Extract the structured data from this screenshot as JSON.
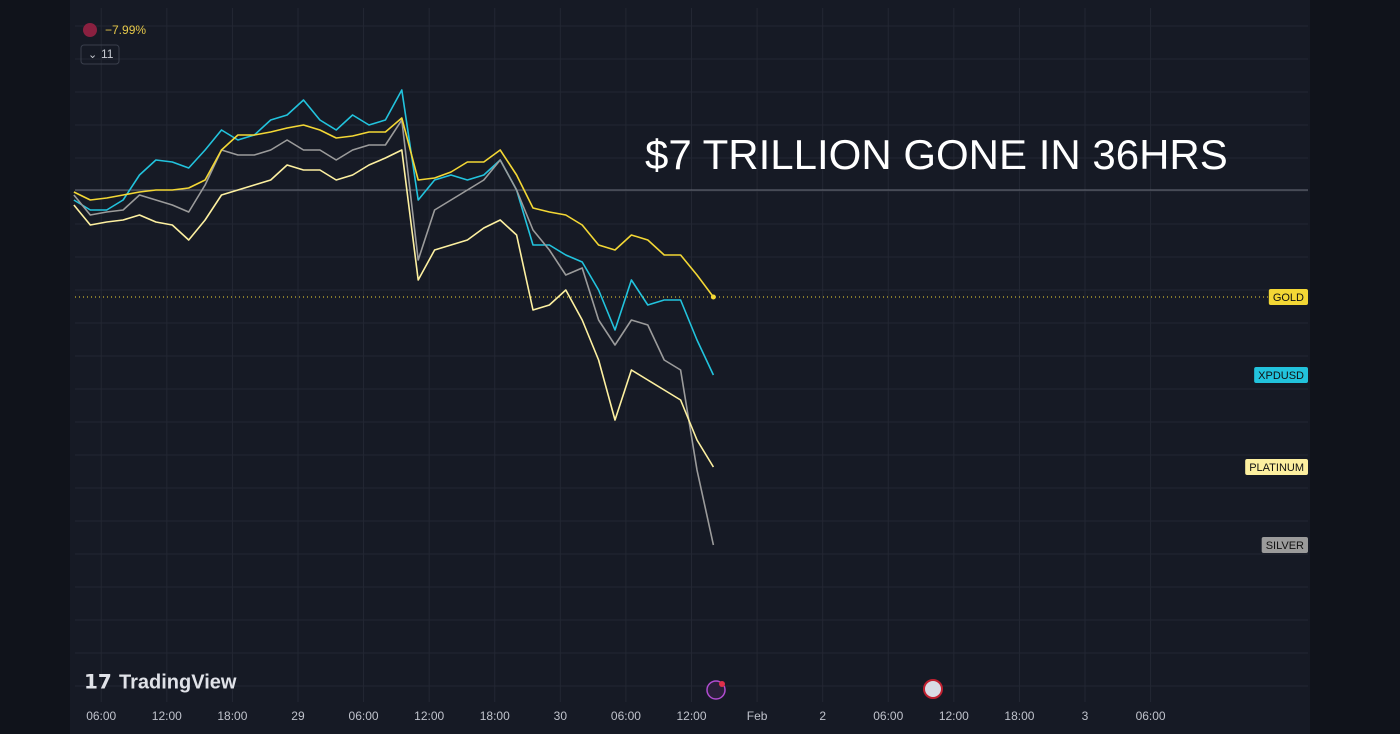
{
  "ui": {
    "change": "−7.99%",
    "collapsed_count": "11",
    "brand": "TradingView"
  },
  "chart_data": {
    "type": "line",
    "annotation": "$7 TRILLION GONE IN 36HRS",
    "x": [
      3.5,
      5,
      6.5,
      8,
      9.5,
      11,
      12.5,
      14,
      15.5,
      17,
      18.5,
      20,
      21.5,
      23,
      24.5,
      26,
      27.5,
      29,
      30.5,
      32,
      33.5,
      35,
      36.5,
      38,
      39.5,
      41,
      42.5,
      44,
      45.5,
      47,
      48.5,
      50,
      51.5,
      53,
      54.5,
      56,
      57.5,
      59,
      60.5,
      62
    ],
    "xlim": [
      3.6,
      116.4
    ],
    "xticks": [
      {
        "value": 6,
        "label": "06:00"
      },
      {
        "value": 12,
        "label": "12:00"
      },
      {
        "value": 18,
        "label": "18:00"
      },
      {
        "value": 24,
        "label": "29"
      },
      {
        "value": 30,
        "label": "06:00"
      },
      {
        "value": 36,
        "label": "12:00"
      },
      {
        "value": 42,
        "label": "18:00"
      },
      {
        "value": 48,
        "label": "30"
      },
      {
        "value": 54,
        "label": "06:00"
      },
      {
        "value": 60,
        "label": "12:00"
      },
      {
        "value": 66,
        "label": "Feb"
      },
      {
        "value": 72,
        "label": "2"
      },
      {
        "value": 78,
        "label": "06:00"
      },
      {
        "value": 84,
        "label": "12:00"
      },
      {
        "value": 90,
        "label": "18:00"
      },
      {
        "value": 96,
        "label": "3"
      },
      {
        "value": 102,
        "label": "06:00"
      }
    ],
    "ylim": [
      -25.5,
      8.5
    ],
    "baseline": 0,
    "series": [
      {
        "name": "XPDUSD",
        "color": "#22c3dd",
        "values": [
          -0.5,
          -1.0,
          -1.0,
          -0.5,
          0.75,
          1.5,
          1.4,
          1.1,
          2.0,
          3.0,
          2.5,
          2.75,
          3.5,
          3.75,
          4.5,
          3.5,
          3.0,
          3.75,
          3.25,
          3.5,
          5.0,
          -0.5,
          0.5,
          0.75,
          0.5,
          0.75,
          1.5,
          0,
          -2.75,
          -2.75,
          -3.25,
          -3.6,
          -5.0,
          -7.0,
          -4.5,
          -5.75,
          -5.5,
          -5.5,
          -7.5,
          -9.25
        ]
      },
      {
        "name": "SILVER",
        "color": "#9b9b9b",
        "values": [
          -0.25,
          -1.25,
          -1.1,
          -1.0,
          -0.25,
          -0.5,
          -0.75,
          -1.1,
          0.25,
          2.0,
          1.75,
          1.75,
          2.0,
          2.5,
          2.0,
          2.0,
          1.5,
          2.0,
          2.25,
          2.25,
          3.5,
          -3.5,
          -1.0,
          -0.5,
          0,
          0.5,
          1.5,
          0,
          -2.0,
          -3.0,
          -4.25,
          -3.9,
          -6.5,
          -7.75,
          -6.5,
          -6.75,
          -8.5,
          -9.0,
          -14.0,
          -17.75
        ]
      },
      {
        "name": "PLATINUM",
        "color": "#fdf0a0",
        "values": [
          -0.75,
          -1.75,
          -1.6,
          -1.5,
          -1.25,
          -1.6,
          -1.75,
          -2.5,
          -1.5,
          -0.25,
          0,
          0.25,
          0.5,
          1.25,
          1.0,
          1.0,
          0.5,
          0.75,
          1.25,
          1.6,
          2.0,
          -4.5,
          -3.0,
          -2.75,
          -2.5,
          -1.9,
          -1.5,
          -2.25,
          -6.0,
          -5.75,
          -5.0,
          -6.5,
          -8.5,
          -11.5,
          -9.0,
          -9.5,
          -10.0,
          -10.5,
          -12.5,
          -13.85
        ]
      },
      {
        "name": "GOLD",
        "color": "#f3d735",
        "values": [
          -0.1,
          -0.5,
          -0.4,
          -0.25,
          -0.1,
          0,
          0,
          0.1,
          0.5,
          2.0,
          2.75,
          2.75,
          2.9,
          3.1,
          3.25,
          3.0,
          2.6,
          2.7,
          2.9,
          2.9,
          3.6,
          0.5,
          0.6,
          0.9,
          1.4,
          1.4,
          2.0,
          0.75,
          -0.9,
          -1.1,
          -1.25,
          -1.75,
          -2.75,
          -3.0,
          -2.25,
          -2.5,
          -3.25,
          -3.25,
          -4.25,
          -5.35
        ]
      }
    ]
  }
}
